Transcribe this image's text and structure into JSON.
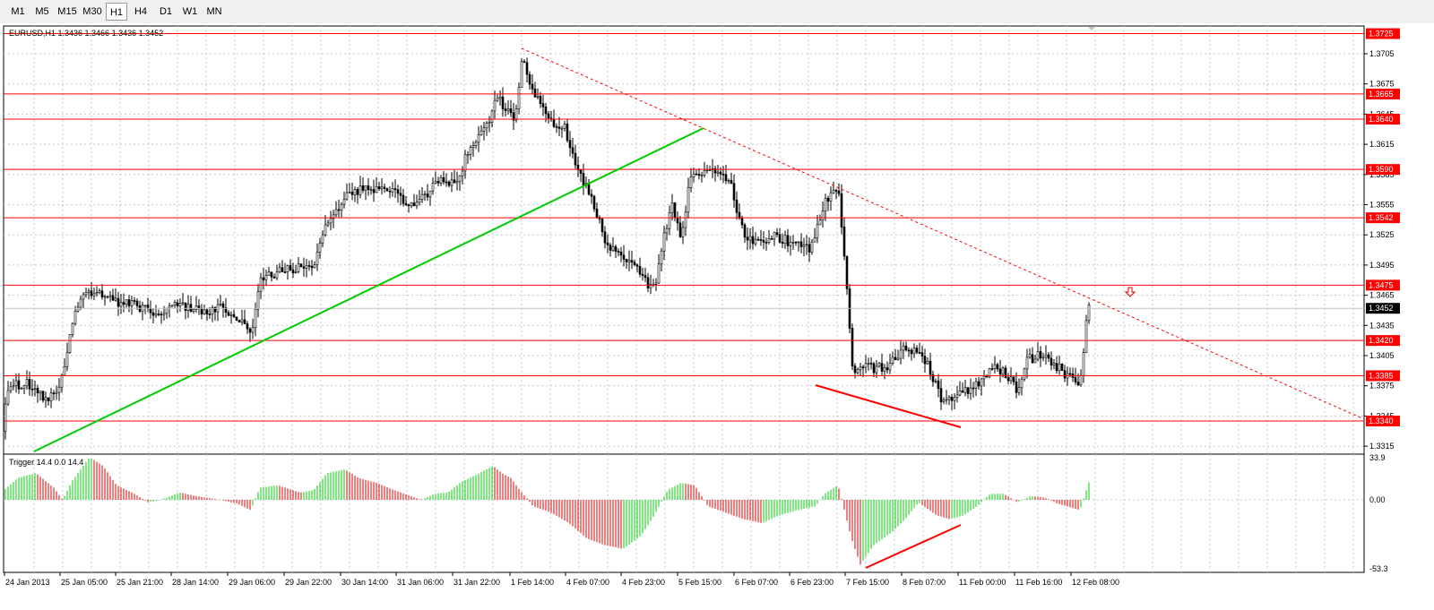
{
  "toolbar": {
    "timeframes": [
      "M1",
      "M5",
      "M15",
      "M30",
      "H1",
      "H4",
      "D1",
      "W1",
      "MN"
    ],
    "active": "H1"
  },
  "main_chart": {
    "header": "EURUSD,H1  1.3436 1.3466 1.3436 1.3452",
    "price_ticks": [
      "1.3705",
      "1.3675",
      "1.3645",
      "1.3615",
      "1.3585",
      "1.3555",
      "1.3525",
      "1.3495",
      "1.3465",
      "1.3435",
      "1.3405",
      "1.3375",
      "1.3345",
      "1.3315"
    ],
    "current_price": "1.3452"
  },
  "levels": [
    {
      "label": "1.3725",
      "price": 1.3725
    },
    {
      "label": "1.3665",
      "price": 1.3665
    },
    {
      "label": "1.3640",
      "price": 1.364
    },
    {
      "label": "1.3590",
      "price": 1.359
    },
    {
      "label": "1.3542",
      "price": 1.3542
    },
    {
      "label": "1.3475",
      "price": 1.3475
    },
    {
      "label": "1.3420",
      "price": 1.342
    },
    {
      "label": "1.3385",
      "price": 1.3385
    },
    {
      "label": "1.3340",
      "price": 1.334
    }
  ],
  "indicator": {
    "header": "Trigger 14.4 0.0 14.4",
    "ticks": [
      "33.9",
      "0.00",
      "-53.3"
    ]
  },
  "time_axis": [
    "24 Jan 2013",
    "25 Jan 05:00",
    "25 Jan 21:00",
    "28 Jan 14:00",
    "29 Jan 06:00",
    "29 Jan 22:00",
    "30 Jan 14:00",
    "31 Jan 06:00",
    "31 Jan 22:00",
    "1 Feb 14:00",
    "4 Feb 07:00",
    "4 Feb 23:00",
    "5 Feb 15:00",
    "6 Feb 07:00",
    "6 Feb 23:00",
    "7 Feb 15:00",
    "8 Feb 07:00",
    "11 Feb 00:00",
    "11 Feb 16:00",
    "12 Feb 08:00"
  ],
  "chart_data": {
    "type": "candlestick",
    "symbol": "EURUSD",
    "timeframe": "H1",
    "last_bar": {
      "open": 1.3436,
      "high": 1.3466,
      "low": 1.3436,
      "close": 1.3452
    },
    "ylim": [
      1.3305,
      1.3735
    ],
    "close_path": [
      [
        0,
        1.333
      ],
      [
        10,
        1.3375
      ],
      [
        30,
        1.3378
      ],
      [
        55,
        1.336
      ],
      [
        70,
        1.3385
      ],
      [
        80,
        1.344
      ],
      [
        95,
        1.3465
      ],
      [
        110,
        1.347
      ],
      [
        130,
        1.3458
      ],
      [
        150,
        1.3455
      ],
      [
        175,
        1.3445
      ],
      [
        200,
        1.3455
      ],
      [
        225,
        1.345
      ],
      [
        245,
        1.3452
      ],
      [
        270,
        1.344
      ],
      [
        280,
        1.3425
      ],
      [
        290,
        1.348
      ],
      [
        310,
        1.3488
      ],
      [
        335,
        1.3492
      ],
      [
        350,
        1.3495
      ],
      [
        365,
        1.354
      ],
      [
        380,
        1.3555
      ],
      [
        395,
        1.357
      ],
      [
        420,
        1.3568
      ],
      [
        440,
        1.3568
      ],
      [
        455,
        1.3555
      ],
      [
        470,
        1.356
      ],
      [
        490,
        1.358
      ],
      [
        510,
        1.3578
      ],
      [
        525,
        1.3615
      ],
      [
        545,
        1.3635
      ],
      [
        555,
        1.3665
      ],
      [
        563,
        1.365
      ],
      [
        575,
        1.364
      ],
      [
        582,
        1.37
      ],
      [
        590,
        1.368
      ],
      [
        610,
        1.364
      ],
      [
        630,
        1.3632
      ],
      [
        645,
        1.359
      ],
      [
        660,
        1.356
      ],
      [
        675,
        1.352
      ],
      [
        690,
        1.3505
      ],
      [
        710,
        1.349
      ],
      [
        730,
        1.347
      ],
      [
        740,
        1.352
      ],
      [
        750,
        1.3555
      ],
      [
        760,
        1.352
      ],
      [
        770,
        1.358
      ],
      [
        785,
        1.3585
      ],
      [
        800,
        1.3588
      ],
      [
        815,
        1.3575
      ],
      [
        830,
        1.3525
      ],
      [
        845,
        1.3515
      ],
      [
        860,
        1.3525
      ],
      [
        875,
        1.352
      ],
      [
        890,
        1.3515
      ],
      [
        905,
        1.351
      ],
      [
        920,
        1.356
      ],
      [
        935,
        1.3572
      ],
      [
        945,
        1.347
      ],
      [
        952,
        1.3385
      ],
      [
        960,
        1.3395
      ],
      [
        975,
        1.3392
      ],
      [
        990,
        1.3395
      ],
      [
        1005,
        1.341
      ],
      [
        1020,
        1.341
      ],
      [
        1030,
        1.3405
      ],
      [
        1040,
        1.3385
      ],
      [
        1050,
        1.336
      ],
      [
        1065,
        1.3365
      ],
      [
        1080,
        1.3372
      ],
      [
        1095,
        1.338
      ],
      [
        1110,
        1.3395
      ],
      [
        1125,
        1.3385
      ],
      [
        1135,
        1.337
      ],
      [
        1145,
        1.34
      ],
      [
        1160,
        1.3405
      ],
      [
        1175,
        1.3398
      ],
      [
        1190,
        1.3385
      ],
      [
        1205,
        1.338
      ],
      [
        1212,
        1.3436
      ],
      [
        1215,
        1.3452
      ]
    ],
    "trigger_path": [
      [
        0,
        5
      ],
      [
        20,
        18
      ],
      [
        40,
        22
      ],
      [
        60,
        10
      ],
      [
        70,
        0
      ],
      [
        80,
        15
      ],
      [
        100,
        35
      ],
      [
        115,
        28
      ],
      [
        130,
        12
      ],
      [
        150,
        5
      ],
      [
        165,
        -2
      ],
      [
        180,
        0
      ],
      [
        200,
        6
      ],
      [
        220,
        3
      ],
      [
        245,
        0
      ],
      [
        265,
        -3
      ],
      [
        280,
        -8
      ],
      [
        290,
        10
      ],
      [
        310,
        12
      ],
      [
        335,
        6
      ],
      [
        350,
        8
      ],
      [
        365,
        22
      ],
      [
        385,
        25
      ],
      [
        400,
        18
      ],
      [
        420,
        14
      ],
      [
        440,
        8
      ],
      [
        455,
        4
      ],
      [
        470,
        0
      ],
      [
        485,
        5
      ],
      [
        500,
        6
      ],
      [
        515,
        15
      ],
      [
        530,
        20
      ],
      [
        550,
        28
      ],
      [
        560,
        22
      ],
      [
        570,
        18
      ],
      [
        580,
        8
      ],
      [
        595,
        -5
      ],
      [
        615,
        -10
      ],
      [
        635,
        -18
      ],
      [
        655,
        -30
      ],
      [
        675,
        -35
      ],
      [
        695,
        -38
      ],
      [
        715,
        -28
      ],
      [
        730,
        -12
      ],
      [
        745,
        8
      ],
      [
        760,
        14
      ],
      [
        775,
        12
      ],
      [
        790,
        -5
      ],
      [
        810,
        -10
      ],
      [
        830,
        -15
      ],
      [
        850,
        -18
      ],
      [
        870,
        -12
      ],
      [
        890,
        -8
      ],
      [
        910,
        -5
      ],
      [
        920,
        5
      ],
      [
        935,
        12
      ],
      [
        950,
        -30
      ],
      [
        960,
        -50
      ],
      [
        975,
        -35
      ],
      [
        995,
        -25
      ],
      [
        1010,
        -15
      ],
      [
        1025,
        -2
      ],
      [
        1045,
        -12
      ],
      [
        1060,
        -15
      ],
      [
        1075,
        -12
      ],
      [
        1090,
        -5
      ],
      [
        1105,
        5
      ],
      [
        1120,
        5
      ],
      [
        1135,
        -2
      ],
      [
        1150,
        3
      ],
      [
        1165,
        2
      ],
      [
        1180,
        -3
      ],
      [
        1195,
        -6
      ],
      [
        1205,
        -8
      ],
      [
        1212,
        8
      ],
      [
        1215,
        14.4
      ]
    ],
    "annotations": [
      {
        "type": "trendline",
        "color": "#00cc00"
      },
      {
        "type": "trendline_dotted",
        "color": "#ff0000"
      },
      {
        "type": "divergence_price",
        "color": "#ff0000"
      },
      {
        "type": "divergence_indicator",
        "color": "#ff0000"
      }
    ]
  },
  "colors": {
    "level": "#ff0000",
    "bull": "#00d000",
    "bear": "#e00000",
    "trend": "#00cc00",
    "candle": "#000000",
    "grid": "#c0c8d0"
  }
}
